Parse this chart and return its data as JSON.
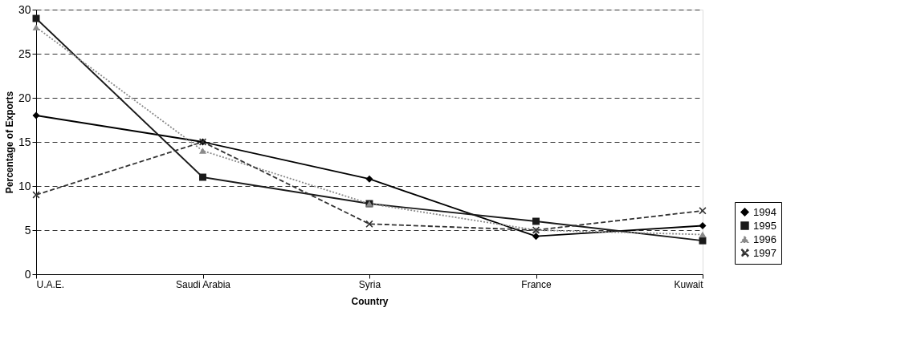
{
  "chart_data": {
    "type": "line",
    "xlabel": "Country",
    "ylabel": "Percentage of Exports",
    "categories": [
      "U.A.E.",
      "Saudi Arabia",
      "Syria",
      "France",
      "Kuwait"
    ],
    "series": [
      {
        "name": "1994",
        "color": "#000000",
        "marker": "diamond",
        "line_style": "solid",
        "values": [
          18,
          15,
          10.8,
          4.3,
          5.5
        ]
      },
      {
        "name": "1995",
        "color": "#1a1a1a",
        "marker": "square",
        "line_style": "solid",
        "values": [
          29,
          11,
          8,
          6,
          3.8
        ]
      },
      {
        "name": "1996",
        "color": "#8a8a8a",
        "marker": "triangle",
        "line_style": "dotted",
        "values": [
          28,
          14,
          8,
          5,
          4.5
        ]
      },
      {
        "name": "1997",
        "color": "#333333",
        "marker": "cross",
        "line_style": "dashed",
        "values": [
          9,
          15,
          5.7,
          5,
          7.2
        ]
      }
    ],
    "ylim": [
      0,
      30
    ],
    "yticks": [
      0,
      5,
      10,
      15,
      20,
      25,
      30
    ],
    "grid": "y",
    "legend": "bottom right"
  }
}
